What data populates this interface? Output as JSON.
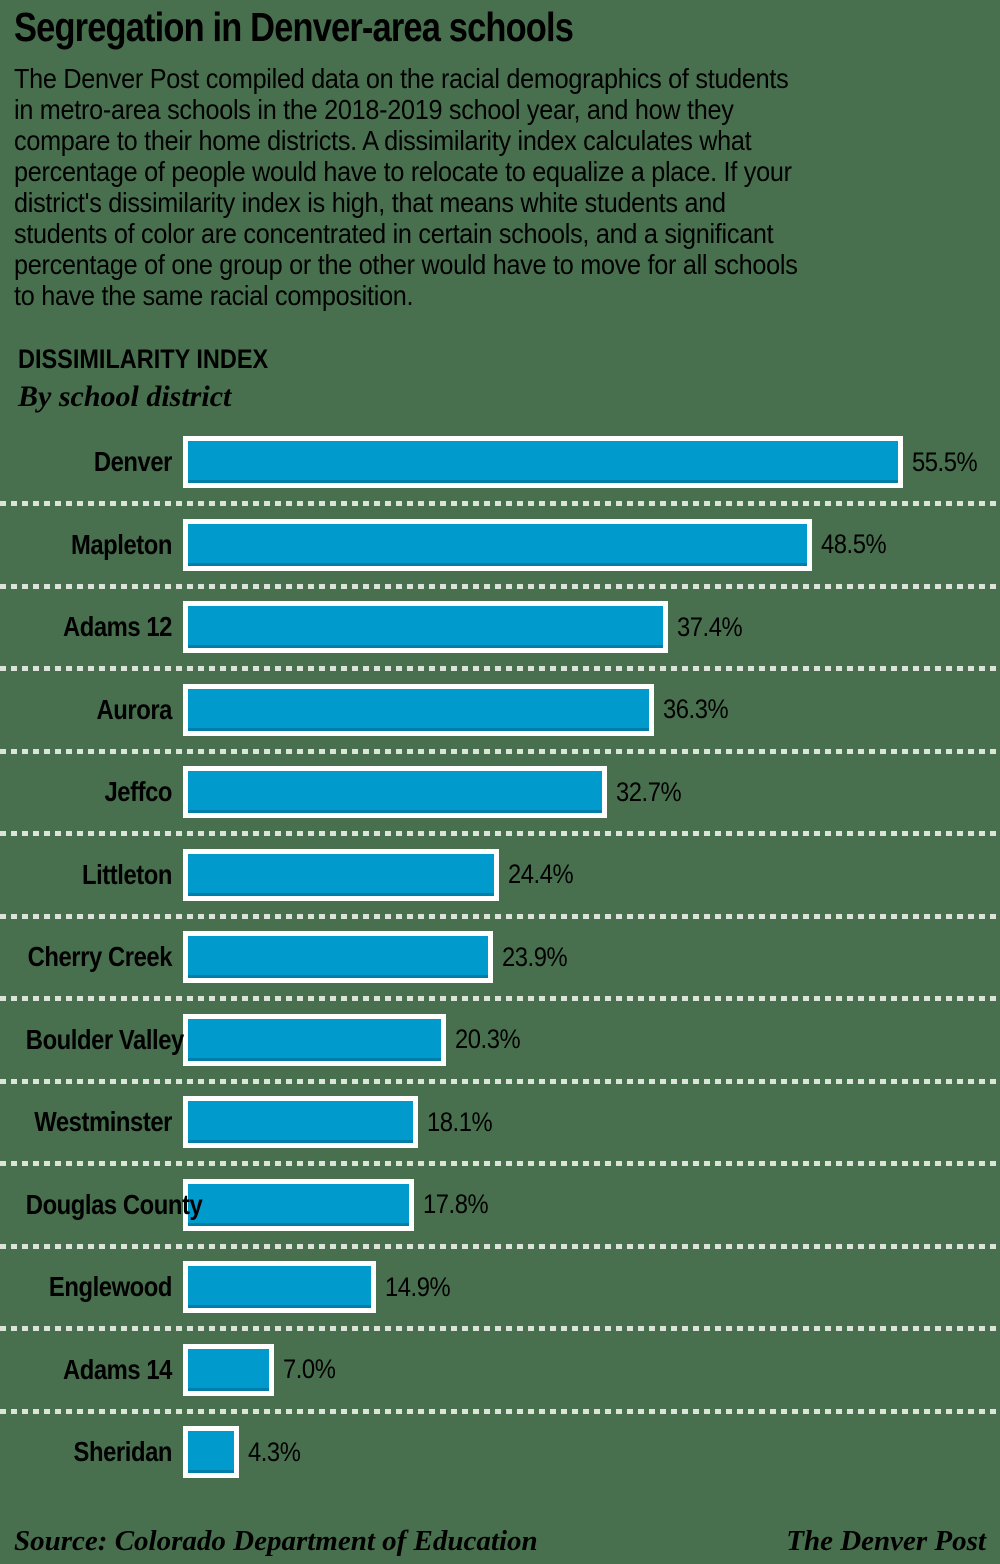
{
  "header": {
    "title": "Segregation in Denver-area schools",
    "intro": "The Denver Post compiled data on the racial demographics of students\nin metro-area schools in the 2018-2019 school year, and how they\ncompare to their home districts. A dissimilarity index calculates what\npercentage of people would have to relocate to equalize a place. If your\ndistrict's dissimilarity index is high, that means white students and\nstudents of color are concentrated in certain schools, and a significant\npercentage of one group or the other would have to move for all schools\nto have the same racial composition."
  },
  "chart_data": {
    "type": "bar",
    "orientation": "horizontal",
    "title": "DISSIMILARITY INDEX",
    "subtitle": "By school district",
    "categories": [
      "Denver",
      "Mapleton",
      "Adams 12",
      "Aurora",
      "Jeffco",
      "Littleton",
      "Cherry Creek",
      "Boulder Valley",
      "Westminster",
      "Douglas County",
      "Englewood",
      "Adams 14",
      "Sheridan"
    ],
    "values": [
      55.5,
      48.5,
      37.4,
      36.3,
      32.7,
      24.4,
      23.9,
      20.3,
      18.1,
      17.8,
      14.9,
      7.0,
      4.3
    ],
    "value_labels": [
      "55.5%",
      "48.5%",
      "37.4%",
      "36.3%",
      "32.7%",
      "24.4%",
      "23.9%",
      "20.3%",
      "18.1%",
      "17.8%",
      "14.9%",
      "7.0%",
      "4.3%"
    ],
    "unit": "percent",
    "xlim": [
      0,
      55.5
    ],
    "legend": "none",
    "grid": "dotted separator line between each bar row"
  },
  "footer": {
    "source": "Source: Colorado Department of Education",
    "credit": "The Denver Post"
  },
  "colors": {
    "background": "#48704e",
    "bar_fill": "#009acd",
    "bar_border": "#ffffff",
    "separator_dash": "#dce3d8",
    "text": "#000000"
  }
}
